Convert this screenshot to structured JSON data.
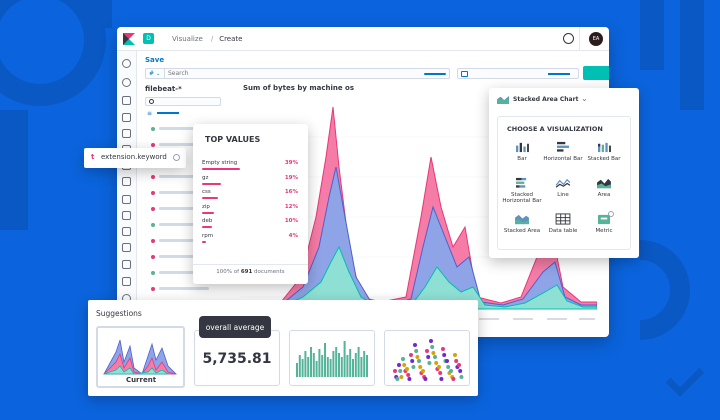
{
  "colors": {
    "background": "#0b64dd",
    "accent_pink": "#e7387a",
    "accent_teal": "#00bfb3",
    "accent_blue": "#0077cc",
    "area_pink": "#f06a9a",
    "area_blue": "#6f87d8",
    "area_teal": "#5fd0c0"
  },
  "header": {
    "breadcrumb_visualize": "Visualize",
    "breadcrumb_separator": "/",
    "breadcrumb_create": "Create",
    "avatar_initials": "EA",
    "logo_icon": "kibana-logo-icon",
    "space_badge": "D"
  },
  "toolbar": {
    "save_label": "Save",
    "query_lang": "#",
    "search_placeholder": "Search"
  },
  "sidebar": {
    "index_pattern": "filebeat-*"
  },
  "chart": {
    "title": "Sum of bytes by machine os"
  },
  "field_tooltip": {
    "type_glyph": "t",
    "field_name": "extension.keyword"
  },
  "top_values": {
    "title": "TOP VALUES",
    "rows": [
      {
        "label": "Empty string",
        "pct": "39%",
        "value": 39
      },
      {
        "label": "gz",
        "pct": "19%",
        "value": 19
      },
      {
        "label": "css",
        "pct": "16%",
        "value": 16
      },
      {
        "label": "zip",
        "pct": "12%",
        "value": 12
      },
      {
        "label": "deb",
        "pct": "10%",
        "value": 10
      },
      {
        "label": "rpm",
        "pct": "4%",
        "value": 4
      }
    ],
    "footer_prefix": "100% of ",
    "footer_count": "691",
    "footer_suffix": " documents"
  },
  "vis_picker": {
    "selected": "Stacked Area Chart",
    "heading": "CHOOSE A VISUALIZATION",
    "options": [
      {
        "label": "Bar",
        "icon": "bar-chart-icon"
      },
      {
        "label": "Horizontal Bar",
        "icon": "horizontal-bar-icon"
      },
      {
        "label": "Stacked Bar",
        "icon": "stacked-bar-icon"
      },
      {
        "label": "Stacked Horizontal Bar",
        "icon": "stacked-horizontal-bar-icon"
      },
      {
        "label": "Line",
        "icon": "line-chart-icon"
      },
      {
        "label": "Area",
        "icon": "area-chart-icon"
      },
      {
        "label": "Stacked Area",
        "icon": "stacked-area-icon"
      },
      {
        "label": "Data table",
        "icon": "table-icon"
      },
      {
        "label": "Metric",
        "icon": "metric-icon"
      }
    ]
  },
  "suggestions": {
    "title": "Suggestions",
    "current_label": "Current",
    "metric_value": "5,735.81",
    "tooltip": "overall average"
  }
}
